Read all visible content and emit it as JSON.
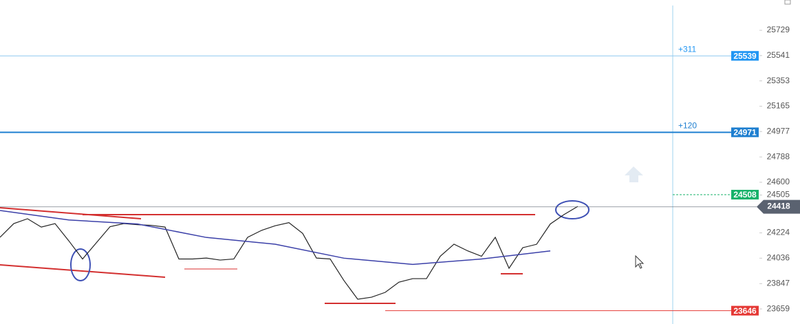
{
  "chart_data": {
    "type": "line",
    "ylim": [
      23547,
      25954
    ],
    "yticks": [
      25729,
      25541,
      25353,
      25165,
      24977,
      24788,
      24600,
      24505,
      24224,
      24036,
      23847,
      23659
    ],
    "series": [
      {
        "color": "#222222",
        "values": [
          24191,
          24293,
          24329,
          24267,
          24293,
          24165,
          24030,
          24150,
          24270,
          24293,
          24285,
          24280,
          24267,
          24030,
          24030,
          24037,
          24022,
          24030,
          24191,
          24242,
          24277,
          24300,
          24220,
          24037,
          24030,
          23870,
          23731,
          23746,
          23782,
          23858,
          23884,
          23884,
          24050,
          24140,
          24090,
          24050,
          24191,
          23961,
          24114,
          24139,
          24290,
          24360,
          24421
        ]
      },
      {
        "color": "#3a3fa8",
        "values": [
          24390,
          24320,
          24290,
          24190,
          24140,
          24036,
          23990,
          24030,
          24090
        ]
      }
    ],
    "levels": [
      {
        "value": 25539,
        "label": "+311",
        "color": "#2196f3"
      },
      {
        "value": 24971,
        "label": "+120",
        "color": "#1e7fd0"
      },
      {
        "value": 24508,
        "color": "#17b26a"
      },
      {
        "value": 24418,
        "color": "#5a6270"
      },
      {
        "value": 23646,
        "color": "#e53935"
      }
    ]
  }
}
